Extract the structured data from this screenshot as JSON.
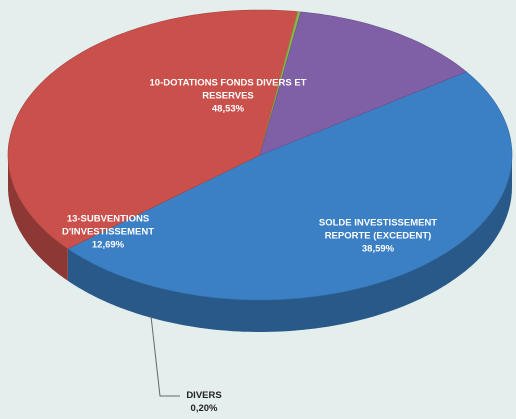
{
  "chart_data": {
    "type": "pie",
    "categories": [
      "10-DOTATIONS FONDS DIVERS ET RESERVES",
      "SOLDE INVESTISSEMENT REPORTE (EXCEDENT)",
      "DIVERS",
      "13-SUBVENTIONS D'INVESTISSEMENT"
    ],
    "values": [
      48.53,
      38.59,
      0.2,
      12.69
    ],
    "value_labels": [
      "48,53%",
      "38,59%",
      "0,20%",
      "12,69%"
    ],
    "colors": [
      "#3b7fc4",
      "#c9504b",
      "#8cb34a",
      "#7f5fa6"
    ]
  }
}
